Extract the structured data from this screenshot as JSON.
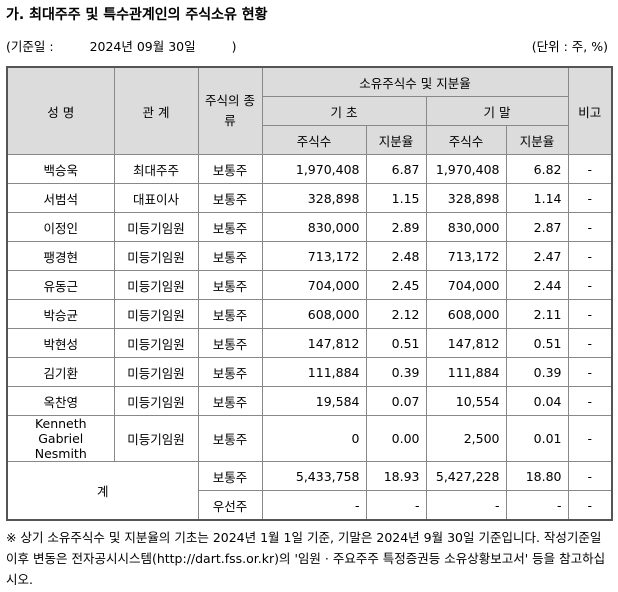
{
  "title": "가. 최대주주 및 특수관계인의 주식소유 현황",
  "baseline": {
    "label": "(기준일 :",
    "date": "2024년 09월 30일",
    "close": ")"
  },
  "unit": "(단위 : 주, %)",
  "headers": {
    "name": "성 명",
    "relation": "관 계",
    "stock_type": "주식의 종류",
    "holding": "소유주식수 및 지분율",
    "begin": "기 초",
    "end": "기 말",
    "shares": "주식수",
    "ratio": "지분율",
    "note": "비고"
  },
  "rows": [
    {
      "name": "백승욱",
      "relation": "최대주주",
      "type": "보통주",
      "b_shares": "1,970,408",
      "b_ratio": "6.87",
      "e_shares": "1,970,408",
      "e_ratio": "6.82",
      "note": "-"
    },
    {
      "name": "서범석",
      "relation": "대표이사",
      "type": "보통주",
      "b_shares": "328,898",
      "b_ratio": "1.15",
      "e_shares": "328,898",
      "e_ratio": "1.14",
      "note": "-"
    },
    {
      "name": "이정인",
      "relation": "미등기임원",
      "type": "보통주",
      "b_shares": "830,000",
      "b_ratio": "2.89",
      "e_shares": "830,000",
      "e_ratio": "2.87",
      "note": "-"
    },
    {
      "name": "팽경현",
      "relation": "미등기임원",
      "type": "보통주",
      "b_shares": "713,172",
      "b_ratio": "2.48",
      "e_shares": "713,172",
      "e_ratio": "2.47",
      "note": "-"
    },
    {
      "name": "유동근",
      "relation": "미등기임원",
      "type": "보통주",
      "b_shares": "704,000",
      "b_ratio": "2.45",
      "e_shares": "704,000",
      "e_ratio": "2.44",
      "note": "-"
    },
    {
      "name": "박승균",
      "relation": "미등기임원",
      "type": "보통주",
      "b_shares": "608,000",
      "b_ratio": "2.12",
      "e_shares": "608,000",
      "e_ratio": "2.11",
      "note": "-"
    },
    {
      "name": "박현성",
      "relation": "미등기임원",
      "type": "보통주",
      "b_shares": "147,812",
      "b_ratio": "0.51",
      "e_shares": "147,812",
      "e_ratio": "0.51",
      "note": "-"
    },
    {
      "name": "김기환",
      "relation": "미등기임원",
      "type": "보통주",
      "b_shares": "111,884",
      "b_ratio": "0.39",
      "e_shares": "111,884",
      "e_ratio": "0.39",
      "note": "-"
    },
    {
      "name": "옥찬영",
      "relation": "미등기임원",
      "type": "보통주",
      "b_shares": "19,584",
      "b_ratio": "0.07",
      "e_shares": "10,554",
      "e_ratio": "0.04",
      "note": "-"
    },
    {
      "name": "Kenneth Gabriel Nesmith",
      "relation": "미등기임원",
      "type": "보통주",
      "b_shares": "0",
      "b_ratio": "0.00",
      "e_shares": "2,500",
      "e_ratio": "0.01",
      "note": "-"
    }
  ],
  "total": {
    "label": "계",
    "common": {
      "type": "보통주",
      "b_shares": "5,433,758",
      "b_ratio": "18.93",
      "e_shares": "5,427,228",
      "e_ratio": "18.80",
      "note": "-"
    },
    "preferred": {
      "type": "우선주",
      "b_shares": "-",
      "b_ratio": "-",
      "e_shares": "-",
      "e_ratio": "-",
      "note": "-"
    }
  },
  "footnote": "※ 상기 소유주식수 및 지분율의 기초는 2024년 1월 1일 기준, 기말은 2024년 9월 30일 기준입니다. 작성기준일 이후 변동은 전자공시시스템(http://dart.fss.or.kr)의 '임원 · 주요주주 특정증권등 소유상황보고서' 등을 참고하십시오."
}
